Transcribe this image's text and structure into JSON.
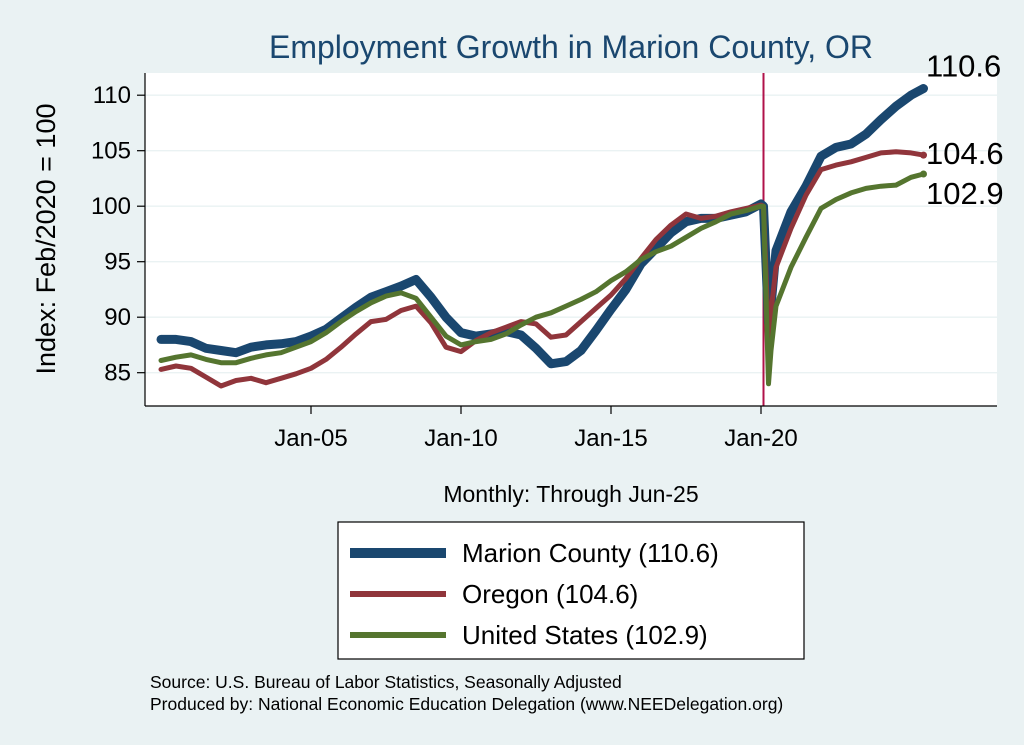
{
  "chart_data": {
    "type": "line",
    "title": "Employment Growth in Marion  County, OR",
    "ylabel": "Index: Feb/2020 = 100",
    "xlabel": "Monthly: Through Jun-25",
    "ylim": [
      82,
      112
    ],
    "y_ticks": [
      "85",
      "90",
      "95",
      "100",
      "105",
      "110"
    ],
    "x_ticks": [
      "Jan-05",
      "Jan-10",
      "Jan-15",
      "Jan-20"
    ],
    "reference_line": "Feb-20",
    "grid": "horizontal",
    "legend_placement": "below",
    "series": [
      {
        "name": "Marion  County (110.6)",
        "end_label": "110.6",
        "color": "#1a476f",
        "points": [
          [
            "Jan-00",
            88.0
          ],
          [
            "Jul-00",
            88.0
          ],
          [
            "Jan-01",
            87.8
          ],
          [
            "Jul-01",
            87.2
          ],
          [
            "Jan-02",
            87.0
          ],
          [
            "Jul-02",
            86.8
          ],
          [
            "Jan-03",
            87.3
          ],
          [
            "Jul-03",
            87.5
          ],
          [
            "Jan-04",
            87.6
          ],
          [
            "Jul-04",
            87.8
          ],
          [
            "Jan-05",
            88.3
          ],
          [
            "Jul-05",
            88.9
          ],
          [
            "Jan-06",
            89.9
          ],
          [
            "Jul-06",
            90.9
          ],
          [
            "Jan-07",
            91.8
          ],
          [
            "Jul-07",
            92.3
          ],
          [
            "Jan-08",
            92.8
          ],
          [
            "Jul-08",
            93.4
          ],
          [
            "Jan-09",
            91.8
          ],
          [
            "Jul-09",
            90.0
          ],
          [
            "Jan-10",
            88.6
          ],
          [
            "Jul-10",
            88.3
          ],
          [
            "Jan-11",
            88.5
          ],
          [
            "Jul-11",
            88.7
          ],
          [
            "Jan-12",
            88.4
          ],
          [
            "Jul-12",
            87.2
          ],
          [
            "Jan-13",
            85.8
          ],
          [
            "Jul-13",
            86.0
          ],
          [
            "Jan-14",
            87.0
          ],
          [
            "Jul-14",
            88.8
          ],
          [
            "Jan-15",
            90.7
          ],
          [
            "Jul-15",
            92.5
          ],
          [
            "Jan-16",
            94.8
          ],
          [
            "Jul-16",
            96.2
          ],
          [
            "Jan-17",
            97.6
          ],
          [
            "Jul-17",
            98.6
          ],
          [
            "Jan-18",
            98.9
          ],
          [
            "Jul-18",
            98.9
          ],
          [
            "Jan-19",
            99.2
          ],
          [
            "Jul-19",
            99.5
          ],
          [
            "Jan-20",
            100.2
          ],
          [
            "Feb-20",
            100.0
          ],
          [
            "Apr-20",
            89.5
          ],
          [
            "May-20",
            91.0
          ],
          [
            "Jul-20",
            96.0
          ],
          [
            "Jan-21",
            99.5
          ],
          [
            "Jul-21",
            101.8
          ],
          [
            "Jan-22",
            104.5
          ],
          [
            "Jul-22",
            105.3
          ],
          [
            "Jan-23",
            105.6
          ],
          [
            "Jul-23",
            106.5
          ],
          [
            "Jan-24",
            107.8
          ],
          [
            "Jul-24",
            109.0
          ],
          [
            "Jan-25",
            110.0
          ],
          [
            "Jun-25",
            110.6
          ]
        ]
      },
      {
        "name": "Oregon (104.6)",
        "end_label": "104.6",
        "color": "#90353b",
        "points": [
          [
            "Jan-00",
            85.3
          ],
          [
            "Jul-00",
            85.6
          ],
          [
            "Jan-01",
            85.4
          ],
          [
            "Jul-01",
            84.6
          ],
          [
            "Jan-02",
            83.8
          ],
          [
            "Jul-02",
            84.3
          ],
          [
            "Jan-03",
            84.5
          ],
          [
            "Jul-03",
            84.1
          ],
          [
            "Jan-04",
            84.5
          ],
          [
            "Jul-04",
            84.9
          ],
          [
            "Jan-05",
            85.4
          ],
          [
            "Jul-05",
            86.2
          ],
          [
            "Jan-06",
            87.3
          ],
          [
            "Jul-06",
            88.5
          ],
          [
            "Jan-07",
            89.6
          ],
          [
            "Jul-07",
            89.8
          ],
          [
            "Jan-08",
            90.6
          ],
          [
            "Jul-08",
            91.0
          ],
          [
            "Jan-09",
            89.5
          ],
          [
            "Jul-09",
            87.3
          ],
          [
            "Jan-10",
            86.9
          ],
          [
            "Jul-10",
            87.9
          ],
          [
            "Jan-11",
            88.6
          ],
          [
            "Jul-11",
            89.1
          ],
          [
            "Jan-12",
            89.6
          ],
          [
            "Jul-12",
            89.4
          ],
          [
            "Jan-13",
            88.2
          ],
          [
            "Jul-13",
            88.4
          ],
          [
            "Jan-14",
            89.6
          ],
          [
            "Jul-14",
            90.8
          ],
          [
            "Jan-15",
            92.0
          ],
          [
            "Jul-15",
            93.5
          ],
          [
            "Jan-16",
            95.3
          ],
          [
            "Jul-16",
            97.0
          ],
          [
            "Jan-17",
            98.3
          ],
          [
            "Jul-17",
            99.3
          ],
          [
            "Jan-18",
            98.9
          ],
          [
            "Jul-18",
            99.1
          ],
          [
            "Jan-19",
            99.5
          ],
          [
            "Jul-19",
            99.8
          ],
          [
            "Jan-20",
            100.1
          ],
          [
            "Feb-20",
            100.0
          ],
          [
            "Apr-20",
            88.0
          ],
          [
            "May-20",
            90.5
          ],
          [
            "Jul-20",
            94.5
          ],
          [
            "Jan-21",
            98.0
          ],
          [
            "Jul-21",
            101.0
          ],
          [
            "Jan-22",
            103.3
          ],
          [
            "Jul-22",
            103.7
          ],
          [
            "Jan-23",
            104.0
          ],
          [
            "Jul-23",
            104.4
          ],
          [
            "Jan-24",
            104.8
          ],
          [
            "Jul-24",
            104.9
          ],
          [
            "Jan-25",
            104.8
          ],
          [
            "Jun-25",
            104.6
          ]
        ]
      },
      {
        "name": "United States (102.9)",
        "end_label": "102.9",
        "color": "#55752f",
        "points": [
          [
            "Jan-00",
            86.1
          ],
          [
            "Jul-00",
            86.4
          ],
          [
            "Jan-01",
            86.6
          ],
          [
            "Jul-01",
            86.2
          ],
          [
            "Jan-02",
            85.9
          ],
          [
            "Jul-02",
            85.9
          ],
          [
            "Jan-03",
            86.3
          ],
          [
            "Jul-03",
            86.6
          ],
          [
            "Jan-04",
            86.8
          ],
          [
            "Jul-04",
            87.3
          ],
          [
            "Jan-05",
            87.8
          ],
          [
            "Jul-05",
            88.6
          ],
          [
            "Jan-06",
            89.6
          ],
          [
            "Jul-06",
            90.5
          ],
          [
            "Jan-07",
            91.3
          ],
          [
            "Jul-07",
            91.9
          ],
          [
            "Jan-08",
            92.2
          ],
          [
            "Jul-08",
            91.7
          ],
          [
            "Jan-09",
            90.0
          ],
          [
            "Jul-09",
            88.3
          ],
          [
            "Jan-10",
            87.5
          ],
          [
            "Jul-10",
            87.8
          ],
          [
            "Jan-11",
            88.0
          ],
          [
            "Jul-11",
            88.5
          ],
          [
            "Jan-12",
            89.3
          ],
          [
            "Jul-12",
            90.0
          ],
          [
            "Jan-13",
            90.4
          ],
          [
            "Jul-13",
            91.0
          ],
          [
            "Jan-14",
            91.6
          ],
          [
            "Jul-14",
            92.3
          ],
          [
            "Jan-15",
            93.3
          ],
          [
            "Jul-15",
            94.1
          ],
          [
            "Jan-16",
            95.2
          ],
          [
            "Jul-16",
            95.9
          ],
          [
            "Jan-17",
            96.4
          ],
          [
            "Jul-17",
            97.2
          ],
          [
            "Jan-18",
            98.0
          ],
          [
            "Jul-18",
            98.6
          ],
          [
            "Jan-19",
            99.3
          ],
          [
            "Jul-19",
            99.6
          ],
          [
            "Jan-20",
            100.0
          ],
          [
            "Feb-20",
            100.0
          ],
          [
            "Apr-20",
            84.0
          ],
          [
            "May-20",
            87.0
          ],
          [
            "Jul-20",
            91.0
          ],
          [
            "Jan-21",
            94.5
          ],
          [
            "Jul-21",
            97.2
          ],
          [
            "Jan-22",
            99.8
          ],
          [
            "Jul-22",
            100.6
          ],
          [
            "Jan-23",
            101.2
          ],
          [
            "Jul-23",
            101.6
          ],
          [
            "Jan-24",
            101.8
          ],
          [
            "Jul-24",
            101.9
          ],
          [
            "Jan-25",
            102.6
          ],
          [
            "Jun-25",
            102.9
          ]
        ]
      }
    ]
  },
  "footer": {
    "source": "Source: U.S. Bureau of Labor Statistics, Seasonally Adjusted",
    "produced_by": "Produced by: National Economic Education Delegation (www.NEEDelegation.org)"
  }
}
